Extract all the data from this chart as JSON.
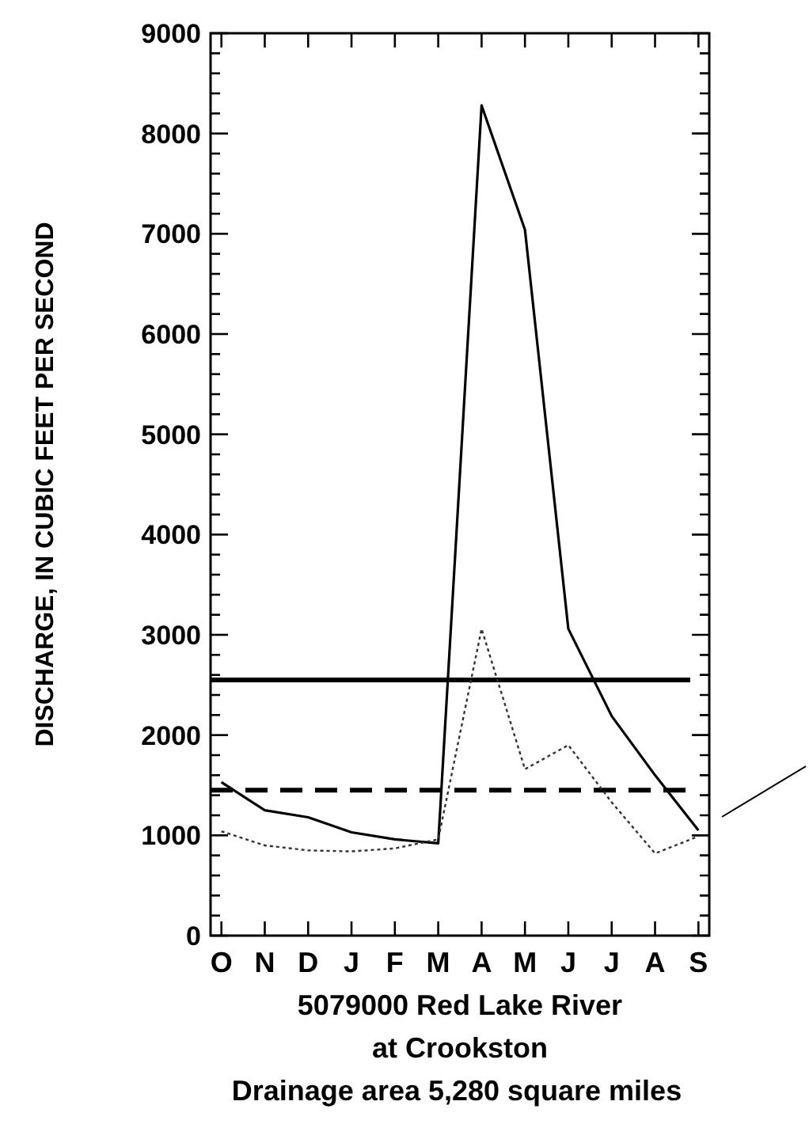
{
  "chart_data": {
    "type": "line",
    "ylabel": "DISCHARGE, IN CUBIC FEET PER SECOND",
    "xlabel": "5079000 Red Lake River\nat Crookston",
    "annotations": [
      "Drainage area 5,280 square miles"
    ],
    "categories": [
      "O",
      "N",
      "D",
      "J",
      "F",
      "M",
      "A",
      "M",
      "J",
      "J",
      "A",
      "S"
    ],
    "series": [
      {
        "color": "#000000",
        "line_style": "solid",
        "values": [
          1530,
          1250,
          1180,
          1030,
          960,
          920,
          8280,
          7040,
          3060,
          2190,
          1600,
          1050
        ]
      },
      {
        "color": "#333333",
        "line_style": "dotted",
        "values": [
          1040,
          900,
          850,
          840,
          870,
          960,
          3060,
          1660,
          1900,
          1330,
          820,
          990
        ]
      }
    ],
    "ylim": [
      0,
      9000
    ],
    "yticks": [
      0,
      {
        "value": 200,
        "label": null
      },
      {
        "value": 400,
        "label": null
      },
      {
        "value": 600,
        "label": null
      },
      {
        "value": 800,
        "label": null
      },
      1000,
      {
        "value": 1200,
        "label": null
      },
      {
        "value": 1400,
        "label": null
      },
      {
        "value": 1600,
        "label": null
      },
      {
        "value": 1800,
        "label": null
      },
      2000,
      {
        "value": 2200,
        "label": null
      },
      {
        "value": 2400,
        "label": null
      },
      {
        "value": 2600,
        "label": null
      },
      {
        "value": 2800,
        "label": null
      },
      3000,
      {
        "value": 3200,
        "label": null
      },
      {
        "value": 3400,
        "label": null
      },
      {
        "value": 3600,
        "label": null
      },
      {
        "value": 3800,
        "label": null
      },
      4000,
      {
        "value": 4200,
        "label": null
      },
      {
        "value": 4400,
        "label": null
      },
      {
        "value": 4600,
        "label": null
      },
      {
        "value": 4800,
        "label": null
      },
      5000,
      {
        "value": 5200,
        "label": null
      },
      {
        "value": 5400,
        "label": null
      },
      {
        "value": 5600,
        "label": null
      },
      {
        "value": 5800,
        "label": null
      },
      6000,
      {
        "value": 6200,
        "label": null
      },
      {
        "value": 6400,
        "label": null
      },
      {
        "value": 6600,
        "label": null
      },
      {
        "value": 6800,
        "label": null
      },
      7000,
      {
        "value": 7200,
        "label": null
      },
      {
        "value": 7400,
        "label": null
      },
      {
        "value": 7600,
        "label": null
      },
      {
        "value": 7800,
        "label": null
      },
      8000,
      {
        "value": 8200,
        "label": null
      },
      {
        "value": 8400,
        "label": null
      },
      {
        "value": 8600,
        "label": null
      },
      {
        "value": 8800,
        "label": null
      },
      9000
    ],
    "ref_lines": [
      {
        "axis": "y",
        "value": 2550,
        "color": "#000000",
        "line_style": "solid"
      },
      {
        "axis": "y",
        "value": 1450,
        "color": "#000000",
        "line_style": "dashed"
      }
    ],
    "grid": false
  }
}
